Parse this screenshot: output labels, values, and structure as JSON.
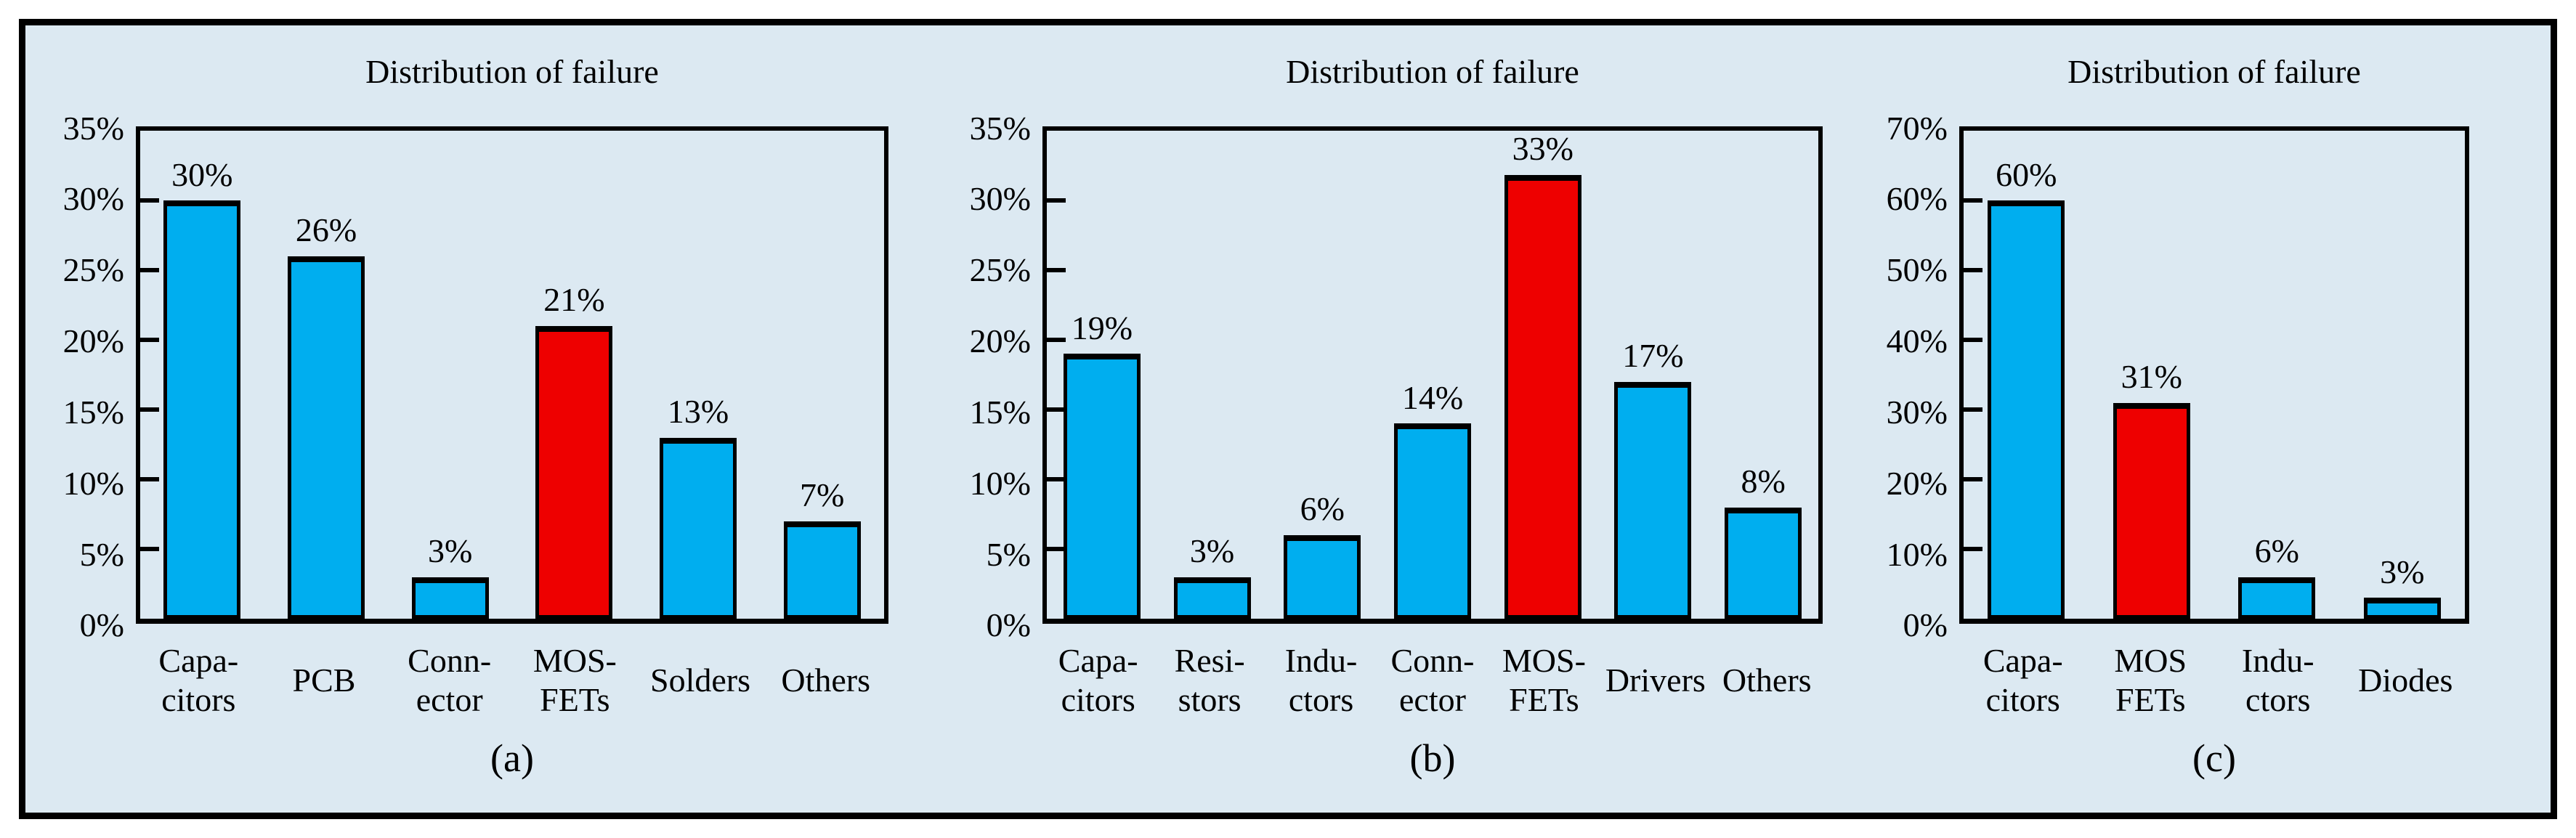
{
  "figure": {
    "background_color": "#dce9f2",
    "outer_background": "#ffffff",
    "frame_border_color": "#000000",
    "bar_blue": "#00aeef",
    "bar_red": "#ee0000",
    "text_color": "#000000"
  },
  "chart_data": [
    {
      "type": "bar",
      "title": "Distribution of failure",
      "panel_label": "(a)",
      "categories": [
        "Capa-\ncitors",
        "PCB",
        "Conn-\nector",
        "MOS-\nFETs",
        "Solders",
        "Others"
      ],
      "values": [
        30,
        26,
        3,
        21,
        13,
        7
      ],
      "value_labels": [
        "30%",
        "26%",
        "3%",
        "21%",
        "13%",
        "7%"
      ],
      "bar_colors": [
        "#00aeef",
        "#00aeef",
        "#00aeef",
        "#ee0000",
        "#00aeef",
        "#00aeef"
      ],
      "highlighted_category": "MOS-FETs",
      "ylim": [
        0,
        35
      ],
      "ytick_step": 5,
      "ytick_labels": [
        "0%",
        "5%",
        "10%",
        "15%",
        "20%",
        "25%",
        "30%",
        "35%"
      ],
      "grid": false,
      "legend": null
    },
    {
      "type": "bar",
      "title": "Distribution of failure",
      "panel_label": "(b)",
      "categories": [
        "Capa-\ncitors",
        "Resi-\nstors",
        "Indu-\nctors",
        "Conn-\nector",
        "MOS-\nFETs",
        "Drivers",
        "Others"
      ],
      "values": [
        19,
        3,
        6,
        14,
        33,
        17,
        8
      ],
      "value_labels": [
        "19%",
        "3%",
        "6%",
        "14%",
        "33%",
        "17%",
        "8%"
      ],
      "bar_colors": [
        "#00aeef",
        "#00aeef",
        "#00aeef",
        "#00aeef",
        "#ee0000",
        "#00aeef",
        "#00aeef"
      ],
      "highlighted_category": "MOS-FETs",
      "ylim": [
        0,
        35
      ],
      "ytick_step": 5,
      "ytick_labels": [
        "0%",
        "5%",
        "10%",
        "15%",
        "20%",
        "25%",
        "30%",
        "35%"
      ],
      "grid": false,
      "legend": null
    },
    {
      "type": "bar",
      "title": "Distribution of failure",
      "panel_label": "(c)",
      "categories": [
        "Capa-\ncitors",
        "MOS\nFETs",
        "Indu-\nctors",
        "Diodes"
      ],
      "values": [
        60,
        31,
        6,
        3
      ],
      "value_labels": [
        "60%",
        "31%",
        "6%",
        "3%"
      ],
      "bar_colors": [
        "#00aeef",
        "#ee0000",
        "#00aeef",
        "#00aeef"
      ],
      "highlighted_category": "MOS FETs",
      "ylim": [
        0,
        70
      ],
      "ytick_step": 10,
      "ytick_labels": [
        "0%",
        "10%",
        "20%",
        "30%",
        "40%",
        "50%",
        "60%",
        "70%"
      ],
      "grid": false,
      "legend": null
    }
  ]
}
